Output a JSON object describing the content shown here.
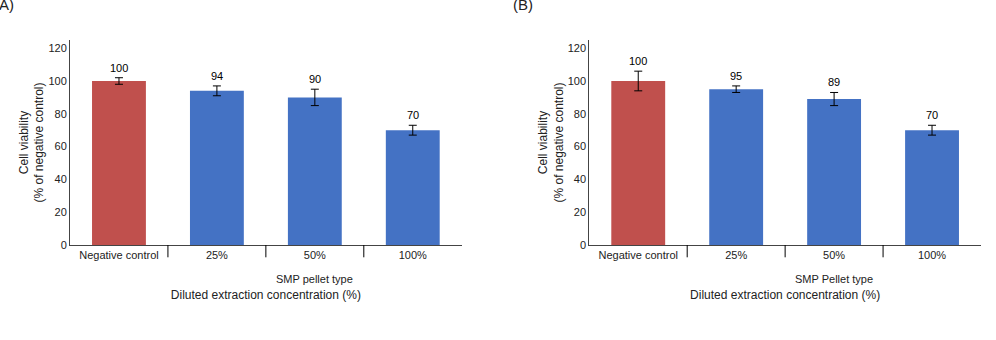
{
  "chart_data": [
    {
      "type": "bar",
      "title": "(A)",
      "categories": [
        "Negative control",
        "25%",
        "50%",
        "100%"
      ],
      "values": [
        100,
        94,
        90,
        70
      ],
      "errors": [
        2,
        3,
        5,
        3
      ],
      "colors": [
        "#c0504d",
        "#4472c4",
        "#4472c4",
        "#4472c4"
      ],
      "data_labels": true,
      "x_label": "Diluted extraction concentration (%)",
      "y_label": "Cell viability\n(% of negative control)",
      "annotations": [
        "SMP pellet type"
      ],
      "ylim": [
        0,
        125
      ],
      "yticks": [
        0,
        20,
        40,
        60,
        80,
        100,
        120
      ],
      "grid": false
    },
    {
      "type": "bar",
      "title": "(B)",
      "categories": [
        "Negative control",
        "25%",
        "50%",
        "100%"
      ],
      "values": [
        100,
        95,
        89,
        70
      ],
      "errors": [
        6,
        2,
        4,
        3
      ],
      "colors": [
        "#c0504d",
        "#4472c4",
        "#4472c4",
        "#4472c4"
      ],
      "data_labels": true,
      "x_label": "Diluted extraction concentration (%)",
      "y_label": "Cell viability\n(% of negative control)",
      "annotations": [
        "SMP Pellet type"
      ],
      "ylim": [
        0,
        125
      ],
      "yticks": [
        0,
        20,
        40,
        60,
        80,
        100,
        120
      ],
      "grid": false
    }
  ]
}
